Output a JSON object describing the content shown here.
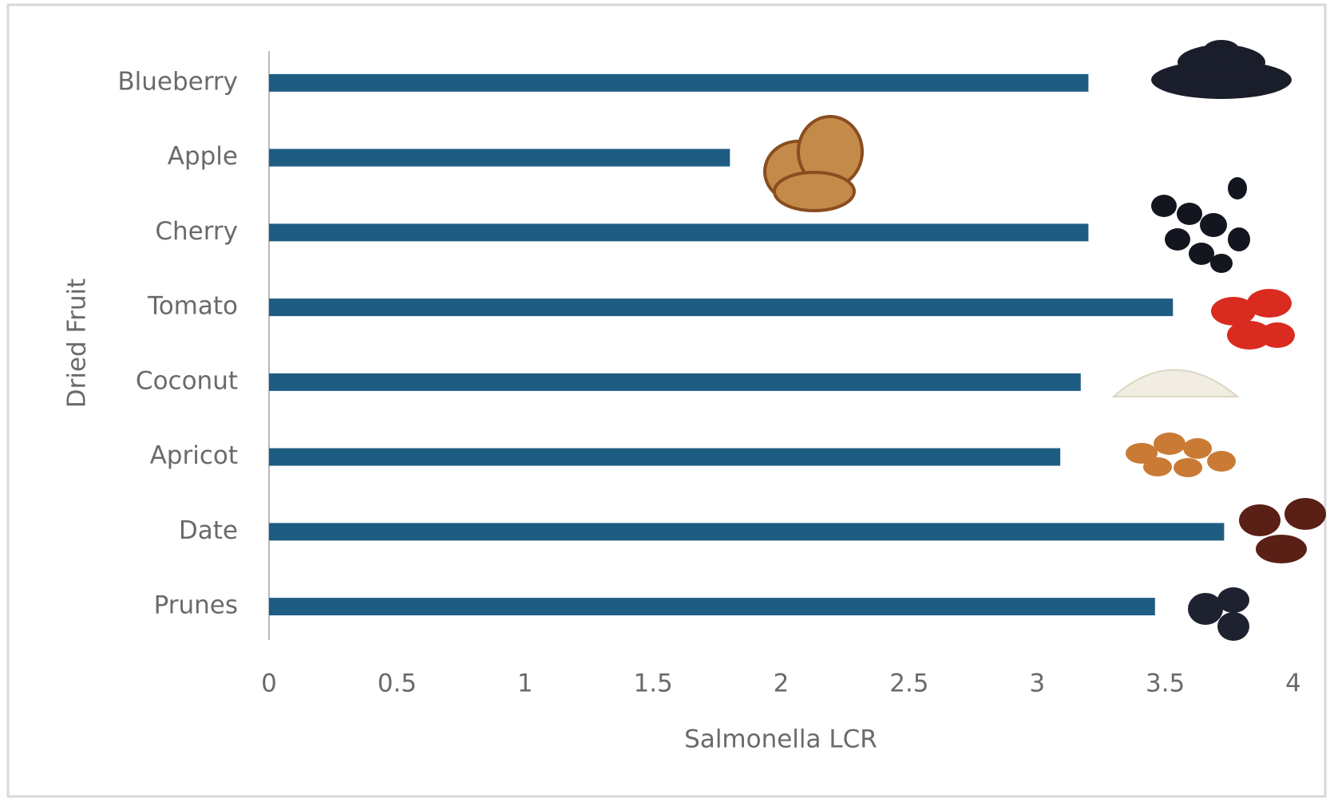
{
  "chart_data": {
    "type": "barh",
    "categories": [
      "Blueberry",
      "Apple",
      "Cherry",
      "Tomato",
      "Coconut",
      "Apricot",
      "Date",
      "Prunes"
    ],
    "values": [
      3.2,
      1.8,
      3.2,
      3.53,
      3.17,
      3.09,
      3.73,
      3.46
    ],
    "color": "#1f5c82",
    "xlim": [
      0,
      4
    ],
    "xticks": [
      0,
      0.5,
      1,
      1.5,
      2,
      2.5,
      3,
      3.5,
      4
    ],
    "xlabel": "Salmonella LCR",
    "ylabel": "Dried Fruit",
    "grid": false
  }
}
